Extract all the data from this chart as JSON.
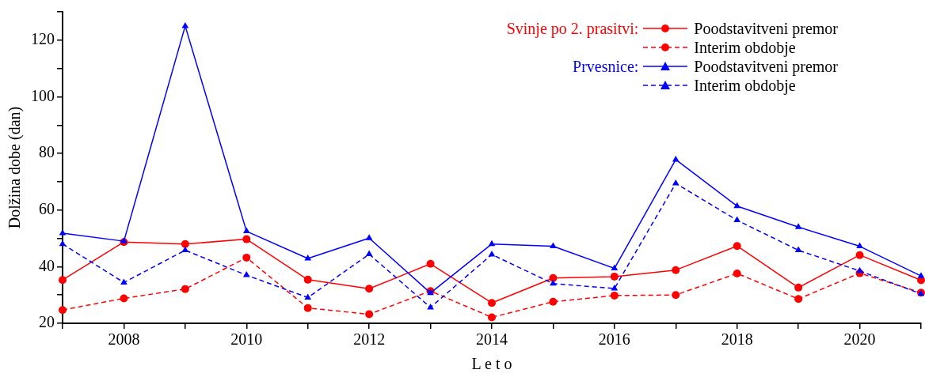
{
  "chart_data": {
    "type": "line",
    "xlabel": "L e t o",
    "ylabel": "Dolžina dobe (dan)",
    "x": [
      2007,
      2008,
      2009,
      2010,
      2011,
      2012,
      2013,
      2014,
      2015,
      2016,
      2017,
      2018,
      2019,
      2020,
      2021
    ],
    "xlim": [
      2007,
      2021
    ],
    "xticks": [
      {
        "value": 2007,
        "label": null
      },
      2008,
      {
        "value": 2009,
        "label": null
      },
      2010,
      {
        "value": 2011,
        "label": null
      },
      2012,
      {
        "value": 2013,
        "label": null
      },
      2014,
      {
        "value": 2015,
        "label": null
      },
      2016,
      {
        "value": 2017,
        "label": null
      },
      2018,
      {
        "value": 2019,
        "label": null
      },
      2020,
      {
        "value": 2021,
        "label": null
      }
    ],
    "ylim": [
      20,
      130
    ],
    "yticks": [
      20,
      {
        "value": 30,
        "label": null
      },
      40,
      {
        "value": 50,
        "label": null
      },
      60,
      {
        "value": 70,
        "label": null
      },
      80,
      {
        "value": 90,
        "label": null
      },
      100,
      {
        "value": 110,
        "label": null
      },
      120,
      {
        "value": 130,
        "label": null
      }
    ],
    "grid": false,
    "legend": "top right",
    "annotations": [
      "Svinje po 2. prasitvi:",
      "Prvesnice:"
    ],
    "series": [
      {
        "name": "Poodstavitveni premor",
        "color": "#ff0000",
        "marker": "circle",
        "line_style": "solid",
        "values": [
          35.3,
          48.7,
          48.0,
          49.7,
          35.4,
          32.2,
          41.0,
          27.2,
          36.0,
          36.5,
          38.8,
          47.3,
          32.6,
          44.1,
          35.2
        ]
      },
      {
        "name": "Interim obdobje",
        "color": "#ff0000",
        "marker": "circle",
        "line_style": "dashed",
        "values": [
          24.7,
          28.8,
          32.1,
          43.2,
          25.4,
          23.2,
          31.4,
          22.1,
          27.6,
          29.8,
          30.0,
          37.6,
          28.6,
          37.7,
          30.8
        ]
      },
      {
        "name": "Poodstavitveni premor",
        "color": "#0000ff",
        "marker": "triangle",
        "line_style": "solid",
        "values": [
          51.8,
          49.0,
          125.0,
          52.5,
          42.9,
          50.1,
          30.7,
          48.0,
          47.2,
          39.4,
          77.8,
          61.4,
          54.0,
          47.2,
          36.7
        ]
      },
      {
        "name": "Interim obdobje",
        "color": "#0000ff",
        "marker": "triangle",
        "line_style": "dashed",
        "values": [
          48.0,
          34.4,
          45.8,
          37.0,
          29.1,
          44.4,
          25.6,
          44.3,
          34.0,
          32.3,
          69.4,
          56.4,
          45.8,
          38.5,
          30.4
        ]
      }
    ]
  }
}
